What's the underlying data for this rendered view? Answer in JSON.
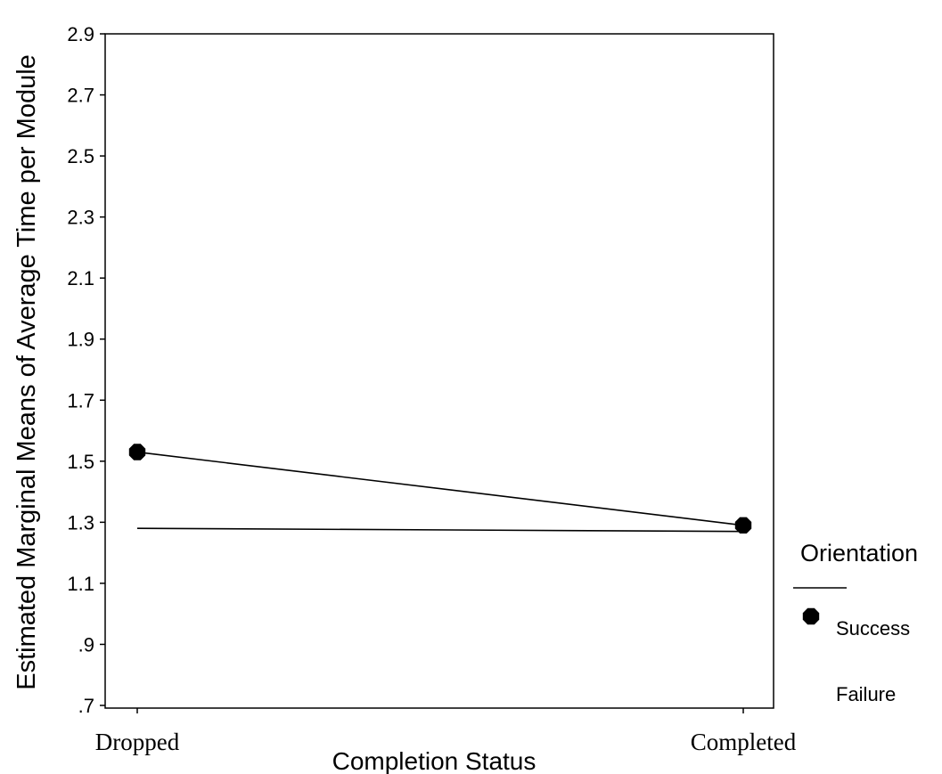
{
  "chart_data": {
    "type": "line",
    "title": "",
    "xlabel": "Completion Status",
    "ylabel": "Estimated Marginal Means of Average Time per Module",
    "categories": [
      "Dropped",
      "Completed"
    ],
    "yticks": [
      ".7",
      ".9",
      "1.1",
      "1.3",
      "1.5",
      "1.7",
      "1.9",
      "2.1",
      "2.3",
      "2.5",
      "2.7",
      "2.9"
    ],
    "ylim": [
      0.7,
      2.9
    ],
    "grid": false,
    "legend": {
      "title": "Orientation",
      "position": "right",
      "entries": [
        "Success",
        "Failure"
      ]
    },
    "series": [
      {
        "name": "Success",
        "values": [
          1.53,
          1.29
        ],
        "marker": "octagon-filled",
        "color": "#000000"
      },
      {
        "name": "Failure",
        "values": [
          1.28,
          1.27
        ],
        "marker": "none",
        "color": "#000000"
      }
    ]
  }
}
